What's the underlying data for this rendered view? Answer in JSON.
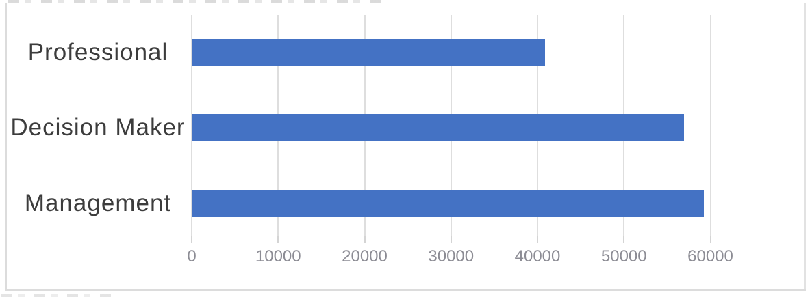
{
  "chart_data": {
    "type": "bar",
    "orientation": "horizontal",
    "title": "",
    "xlabel": "",
    "ylabel": "",
    "categories": [
      "Professional",
      "Decision Maker",
      "Management"
    ],
    "values": [
      40800,
      56900,
      59200
    ],
    "xticks": [
      0,
      10000,
      20000,
      30000,
      40000,
      50000,
      60000
    ],
    "xtick_labels": [
      "0",
      "10000",
      "20000",
      "30000",
      "40000",
      "50000",
      "60000"
    ],
    "xlim": [
      0,
      65000
    ],
    "grid": "vertical gridlines with short tick stubs below axis, no baseline",
    "legend": "none",
    "data_labels": "none"
  },
  "colors": {
    "bar": "#4472C4",
    "gridline": "#DEDEDE",
    "tick_stub": "#D4D4D4",
    "tick_label": "#8C8C94",
    "category_label": "#3C3C3C",
    "frame_border": "#DCDCDC",
    "background": "#FFFFFF"
  }
}
